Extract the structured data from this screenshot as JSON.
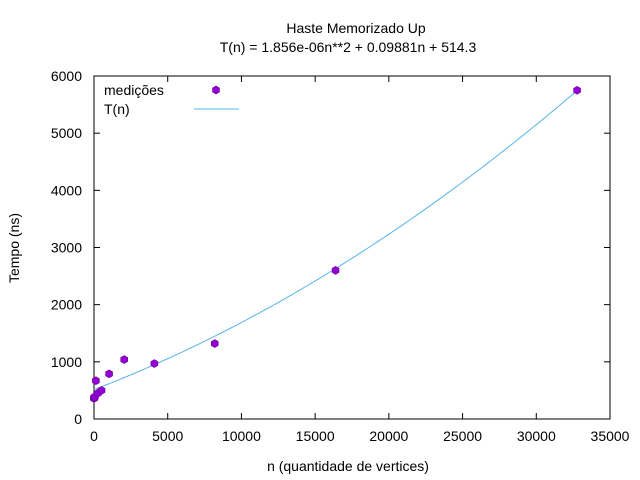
{
  "chart_data": {
    "type": "scatter",
    "title": "Haste Memorizado Up",
    "subtitle": "T(n) = 1.856e-06n**2 + 0.09881n + 514.3",
    "xlabel": "n (quantidade de vertices)",
    "ylabel": "Tempo (ns)",
    "xlim": [
      0,
      35000
    ],
    "ylim": [
      0,
      6000
    ],
    "xticks": [
      "0",
      "5000",
      "10000",
      "15000",
      "20000",
      "25000",
      "30000",
      "35000"
    ],
    "yticks": [
      "0",
      "1000",
      "2000",
      "3000",
      "4000",
      "5000",
      "6000"
    ],
    "grid": false,
    "legend_position": "top-left",
    "series": [
      {
        "name": "medições",
        "kind": "points",
        "color": "#9400d3",
        "x": [
          2,
          4,
          8,
          16,
          32,
          64,
          128,
          256,
          512,
          1024,
          2048,
          4096,
          8192,
          16384,
          32768
        ],
        "y": [
          360,
          370,
          365,
          380,
          380,
          390,
          670,
          450,
          500,
          790,
          1040,
          970,
          1320,
          2600,
          5750
        ]
      },
      {
        "name": "T(n)",
        "kind": "fit-line",
        "color": "#56b4e9",
        "coefficients": {
          "a": 1.856e-06,
          "b": 0.09881,
          "c": 514.3
        }
      }
    ]
  }
}
